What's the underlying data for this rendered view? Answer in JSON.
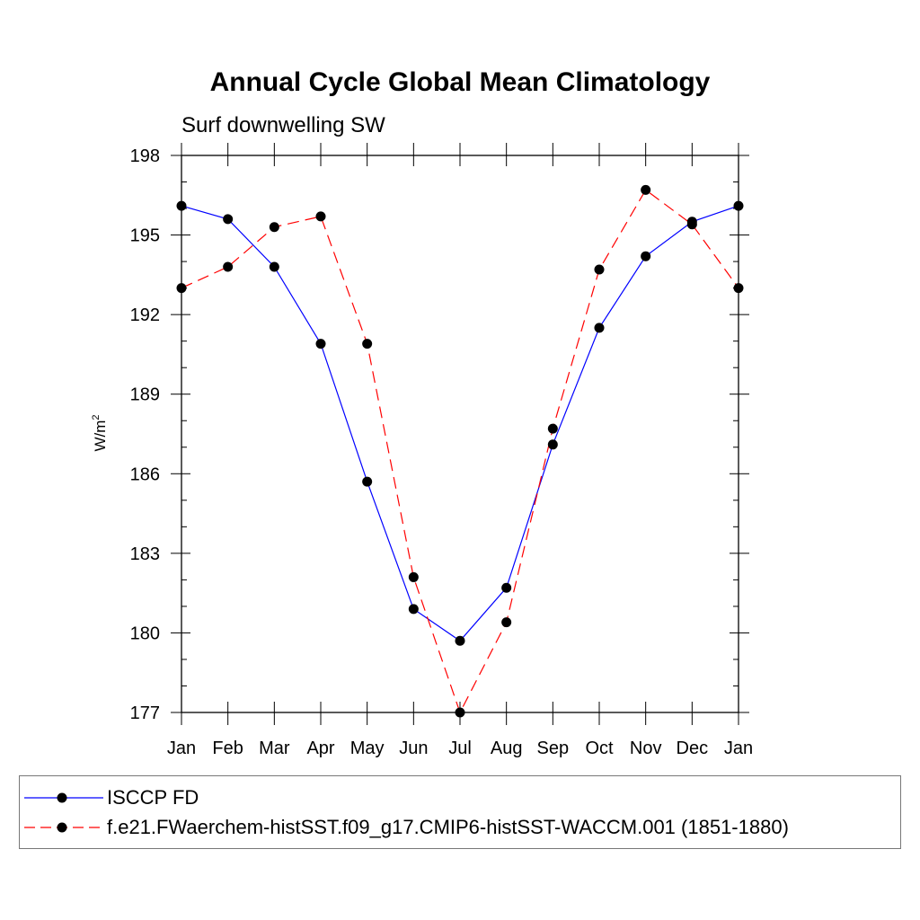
{
  "chart_data": {
    "type": "line",
    "title": "Annual Cycle Global Mean Climatology",
    "subtitle": "Surf downwelling SW",
    "ylabel": "W/m",
    "ylabel_sup": "2",
    "ylim": [
      177,
      198
    ],
    "yticks": [
      177,
      180,
      183,
      186,
      189,
      192,
      195,
      198
    ],
    "categories": [
      "Jan",
      "Feb",
      "Mar",
      "Apr",
      "May",
      "Jun",
      "Jul",
      "Aug",
      "Sep",
      "Oct",
      "Nov",
      "Dec",
      "Jan"
    ],
    "series": [
      {
        "name": "ISCCP FD",
        "color": "#0000ff",
        "dash": "solid",
        "values": [
          196.1,
          195.6,
          193.8,
          190.9,
          185.7,
          180.9,
          179.7,
          181.7,
          187.1,
          191.5,
          194.2,
          195.5,
          196.1
        ]
      },
      {
        "name": "f.e21.FWaerchem-histSST.f09_g17.CMIP6-histSST-WACCM.001 (1851-1880)",
        "color": "#ff0000",
        "dash": "dashed",
        "values": [
          193.0,
          193.8,
          195.3,
          195.7,
          190.9,
          182.1,
          177.0,
          180.4,
          187.7,
          193.7,
          196.7,
          195.4,
          193.0
        ]
      }
    ]
  }
}
